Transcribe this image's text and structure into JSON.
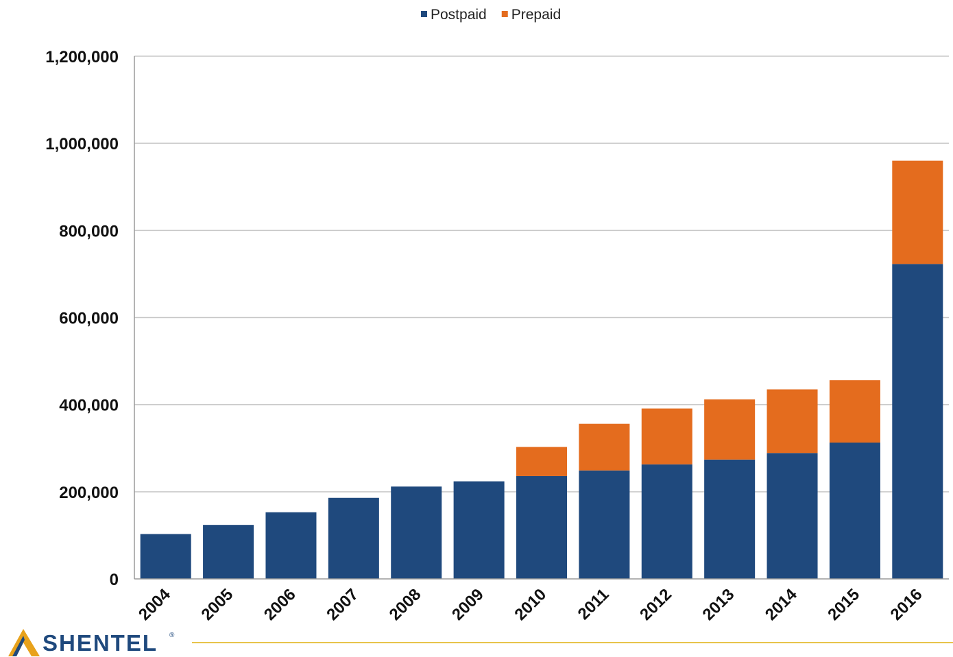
{
  "chart_data": {
    "type": "bar",
    "stacked": true,
    "categories": [
      "2004",
      "2005",
      "2006",
      "2007",
      "2008",
      "2009",
      "2010",
      "2011",
      "2012",
      "2013",
      "2014",
      "2015",
      "2016"
    ],
    "series": [
      {
        "name": "Postpaid",
        "color": "#1f497d",
        "values": [
          103000,
          124000,
          153000,
          186000,
          212000,
          224000,
          236000,
          249000,
          263000,
          274000,
          289000,
          313000,
          723000
        ]
      },
      {
        "name": "Prepaid",
        "color": "#e46c1e",
        "values": [
          0,
          0,
          0,
          0,
          0,
          0,
          67000,
          107000,
          128000,
          138000,
          146000,
          143000,
          237000
        ]
      }
    ],
    "ylim": [
      0,
      1200000
    ],
    "yticks": [
      0,
      200000,
      400000,
      600000,
      800000,
      1000000,
      1200000
    ],
    "ytick_labels": [
      "0",
      "200,000",
      "400,000",
      "600,000",
      "800,000",
      "1,000,000",
      "1,200,000"
    ],
    "grid": true,
    "legend_position": "top-center",
    "title": "",
    "xlabel": "",
    "ylabel": ""
  },
  "logo": {
    "text": "SHENTEL",
    "mark": "®",
    "text_color": "#1f497d",
    "accent_color": "#e8a21c"
  },
  "colors": {
    "grid": "#c8c8c8",
    "axis": "#9a9a9a",
    "footer_line": "#e8c44a"
  }
}
